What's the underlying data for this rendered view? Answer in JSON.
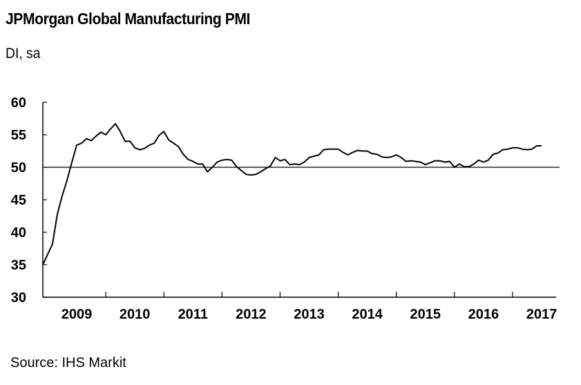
{
  "header": {
    "title": "JPMorgan Global Manufacturing PMI",
    "subtitle": "DI, sa"
  },
  "footer": {
    "source": "Source: IHS Markit"
  },
  "chart_data": {
    "type": "line",
    "title": "JPMorgan Global Manufacturing PMI",
    "ylabel": "DI, sa",
    "xlabel": "",
    "ylim": [
      30,
      60
    ],
    "yticks": [
      30,
      35,
      40,
      45,
      50,
      55,
      60
    ],
    "xlim": [
      2008.917,
      2017.75
    ],
    "year_labels": [
      "2009",
      "2010",
      "2011",
      "2012",
      "2013",
      "2014",
      "2015",
      "2016",
      "2017"
    ],
    "reference_line": 50,
    "line_color": "#000000",
    "series": [
      {
        "name": "JPMorgan Global Manufacturing PMI",
        "x": [
          2008.917,
          2009.0,
          2009.083,
          2009.167,
          2009.25,
          2009.333,
          2009.417,
          2009.5,
          2009.583,
          2009.667,
          2009.75,
          2009.833,
          2009.917,
          2010.0,
          2010.083,
          2010.167,
          2010.25,
          2010.333,
          2010.417,
          2010.5,
          2010.583,
          2010.667,
          2010.75,
          2010.833,
          2010.917,
          2011.0,
          2011.083,
          2011.167,
          2011.25,
          2011.333,
          2011.417,
          2011.5,
          2011.583,
          2011.667,
          2011.75,
          2011.833,
          2011.917,
          2012.0,
          2012.083,
          2012.167,
          2012.25,
          2012.333,
          2012.417,
          2012.5,
          2012.583,
          2012.667,
          2012.75,
          2012.833,
          2012.917,
          2013.0,
          2013.083,
          2013.167,
          2013.25,
          2013.333,
          2013.417,
          2013.5,
          2013.583,
          2013.667,
          2013.75,
          2013.833,
          2013.917,
          2014.0,
          2014.083,
          2014.167,
          2014.25,
          2014.333,
          2014.417,
          2014.5,
          2014.583,
          2014.667,
          2014.75,
          2014.833,
          2014.917,
          2015.0,
          2015.083,
          2015.167,
          2015.25,
          2015.333,
          2015.417,
          2015.5,
          2015.583,
          2015.667,
          2015.75,
          2015.833,
          2015.917,
          2016.0,
          2016.083,
          2016.167,
          2016.25,
          2016.333,
          2016.417,
          2016.5,
          2016.583,
          2016.667,
          2016.75,
          2016.833,
          2016.917,
          2017.0,
          2017.083,
          2017.167,
          2017.25,
          2017.333,
          2017.417,
          2017.5
        ],
        "values": [
          35.0,
          36.6,
          38.2,
          42.8,
          45.6,
          48.0,
          50.8,
          53.4,
          53.7,
          54.4,
          54.1,
          54.8,
          55.4,
          55.0,
          55.9,
          56.7,
          55.5,
          54.0,
          54.0,
          53.0,
          52.7,
          52.9,
          53.4,
          53.7,
          54.9,
          55.5,
          54.2,
          53.7,
          53.2,
          52.0,
          51.2,
          50.9,
          50.5,
          50.5,
          49.3,
          50.0,
          50.8,
          51.1,
          51.2,
          51.1,
          50.1,
          49.5,
          48.9,
          48.8,
          48.9,
          49.3,
          49.8,
          50.2,
          51.5,
          51.0,
          51.2,
          50.4,
          50.5,
          50.4,
          50.8,
          51.5,
          51.7,
          51.9,
          52.7,
          52.8,
          52.8,
          52.8,
          52.3,
          51.9,
          52.3,
          52.6,
          52.5,
          52.5,
          52.1,
          52.0,
          51.6,
          51.5,
          51.6,
          51.9,
          51.5,
          50.9,
          51.0,
          50.9,
          50.8,
          50.4,
          50.7,
          51.0,
          51.0,
          50.8,
          50.9,
          50.0,
          50.5,
          50.1,
          50.1,
          50.5,
          51.1,
          50.8,
          51.1,
          52.0,
          52.2,
          52.7,
          52.8,
          53.0,
          53.0,
          52.8,
          52.7,
          52.8,
          53.3,
          53.3
        ]
      }
    ]
  }
}
